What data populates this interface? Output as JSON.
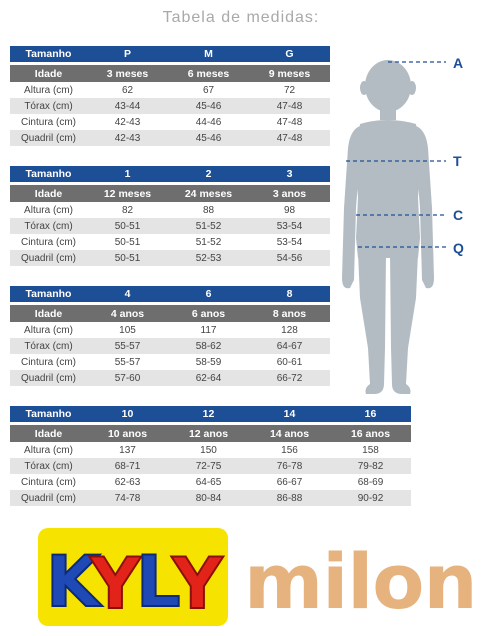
{
  "title": "Tabela de medidas:",
  "tables": [
    {
      "header": [
        "Tamanho",
        "P",
        "M",
        "G"
      ],
      "ages": [
        "Idade",
        "3 meses",
        "6 meses",
        "9 meses"
      ],
      "rows": [
        [
          "Altura (cm)",
          "62",
          "67",
          "72"
        ],
        [
          "Tórax (cm)",
          "43-44",
          "45-46",
          "47-48"
        ],
        [
          "Cintura (cm)",
          "42-43",
          "44-46",
          "47-48"
        ],
        [
          "Quadril (cm)",
          "42-43",
          "45-46",
          "47-48"
        ]
      ]
    },
    {
      "header": [
        "Tamanho",
        "1",
        "2",
        "3"
      ],
      "ages": [
        "Idade",
        "12 meses",
        "24 meses",
        "3 anos"
      ],
      "rows": [
        [
          "Altura (cm)",
          "82",
          "88",
          "98"
        ],
        [
          "Tórax (cm)",
          "50-51",
          "51-52",
          "53-54"
        ],
        [
          "Cintura (cm)",
          "50-51",
          "51-52",
          "53-54"
        ],
        [
          "Quadril (cm)",
          "50-51",
          "52-53",
          "54-56"
        ]
      ]
    },
    {
      "header": [
        "Tamanho",
        "4",
        "6",
        "8"
      ],
      "ages": [
        "Idade",
        "4 anos",
        "6 anos",
        "8 anos"
      ],
      "rows": [
        [
          "Altura (cm)",
          "105",
          "117",
          "128"
        ],
        [
          "Tórax (cm)",
          "55-57",
          "58-62",
          "64-67"
        ],
        [
          "Cintura (cm)",
          "55-57",
          "58-59",
          "60-61"
        ],
        [
          "Quadril (cm)",
          "57-60",
          "62-64",
          "66-72"
        ]
      ]
    },
    {
      "header": [
        "Tamanho",
        "10",
        "12",
        "14",
        "16"
      ],
      "ages": [
        "Idade",
        "10 anos",
        "12 anos",
        "14 anos",
        "16 anos"
      ],
      "rows": [
        [
          "Altura (cm)",
          "137",
          "150",
          "156",
          "158"
        ],
        [
          "Tórax (cm)",
          "68-71",
          "72-75",
          "76-78",
          "79-82"
        ],
        [
          "Cintura (cm)",
          "62-63",
          "64-65",
          "66-67",
          "68-69"
        ],
        [
          "Quadril (cm)",
          "74-78",
          "80-84",
          "86-88",
          "90-92"
        ]
      ]
    }
  ],
  "figure_markers": [
    "A",
    "T",
    "C",
    "Q"
  ],
  "logos": {
    "kyly": "KYLY",
    "milon": "milon"
  },
  "colors": {
    "header_blue": "#1d4f96",
    "age_gray": "#6e6e6e",
    "row_shade": "#e4e4e4",
    "figure": "#b3bcc3",
    "milon": "#e6b27e",
    "kyly_yellow": "#f6e300",
    "kyly_red": "#e2231a",
    "kyly_blue": "#1f49b5"
  }
}
